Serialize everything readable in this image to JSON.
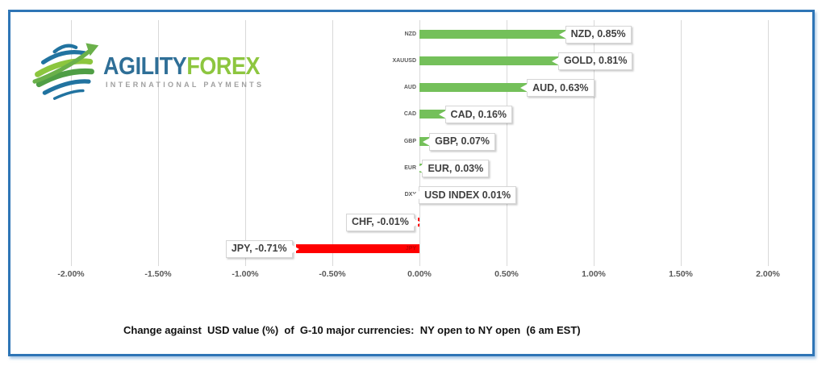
{
  "logo": {
    "brand_part1": "AGILITY",
    "brand_part2": "FOREX",
    "tagline": "INTERNATIONAL PAYMENTS"
  },
  "chart_data": {
    "type": "bar",
    "orientation": "horizontal",
    "title": "Change against  USD value (%)  of  G-10 major currencies:  NY open to NY open  (6 am EST)",
    "rows": [
      {
        "category": "NZD",
        "value": 0.85,
        "label": "NZD, 0.85%"
      },
      {
        "category": "XAUUSD",
        "value": 0.81,
        "label": "GOLD, 0.81%"
      },
      {
        "category": "AUD",
        "value": 0.63,
        "label": "AUD, 0.63%"
      },
      {
        "category": "CAD",
        "value": 0.16,
        "label": "CAD, 0.16%"
      },
      {
        "category": "GBP",
        "value": 0.07,
        "label": "GBP, 0.07%"
      },
      {
        "category": "EUR",
        "value": 0.03,
        "label": "EUR, 0.03%"
      },
      {
        "category": "DXY",
        "value": 0.01,
        "label": "USD INDEX 0.01%"
      },
      {
        "category": "CHF",
        "value": -0.01,
        "label": "CHF, -0.01%"
      },
      {
        "category": "JPY",
        "value": -0.71,
        "label": "JPY, -0.71%",
        "category_inside_bar": true
      }
    ],
    "x_tick_labels": [
      "-2.00%",
      "-1.50%",
      "-1.00%",
      "-0.50%",
      "0.00%",
      "0.50%",
      "1.00%",
      "1.50%",
      "2.00%"
    ],
    "x_tick_values": [
      -2.0,
      -1.5,
      -1.0,
      -0.5,
      0.0,
      0.5,
      1.0,
      1.5,
      2.0
    ],
    "xlim": [
      -2.0,
      2.0
    ],
    "grid": true,
    "legend": false,
    "colors": {
      "positive_bar": "#74c05a",
      "negative_bar": "#ff0000",
      "gridline": "#d9d9d9",
      "axis_text": "#595959",
      "data_label_text": "#3f3f3f",
      "category_inside_negative": "#c00000",
      "frame_border": "#2e75b6"
    }
  }
}
